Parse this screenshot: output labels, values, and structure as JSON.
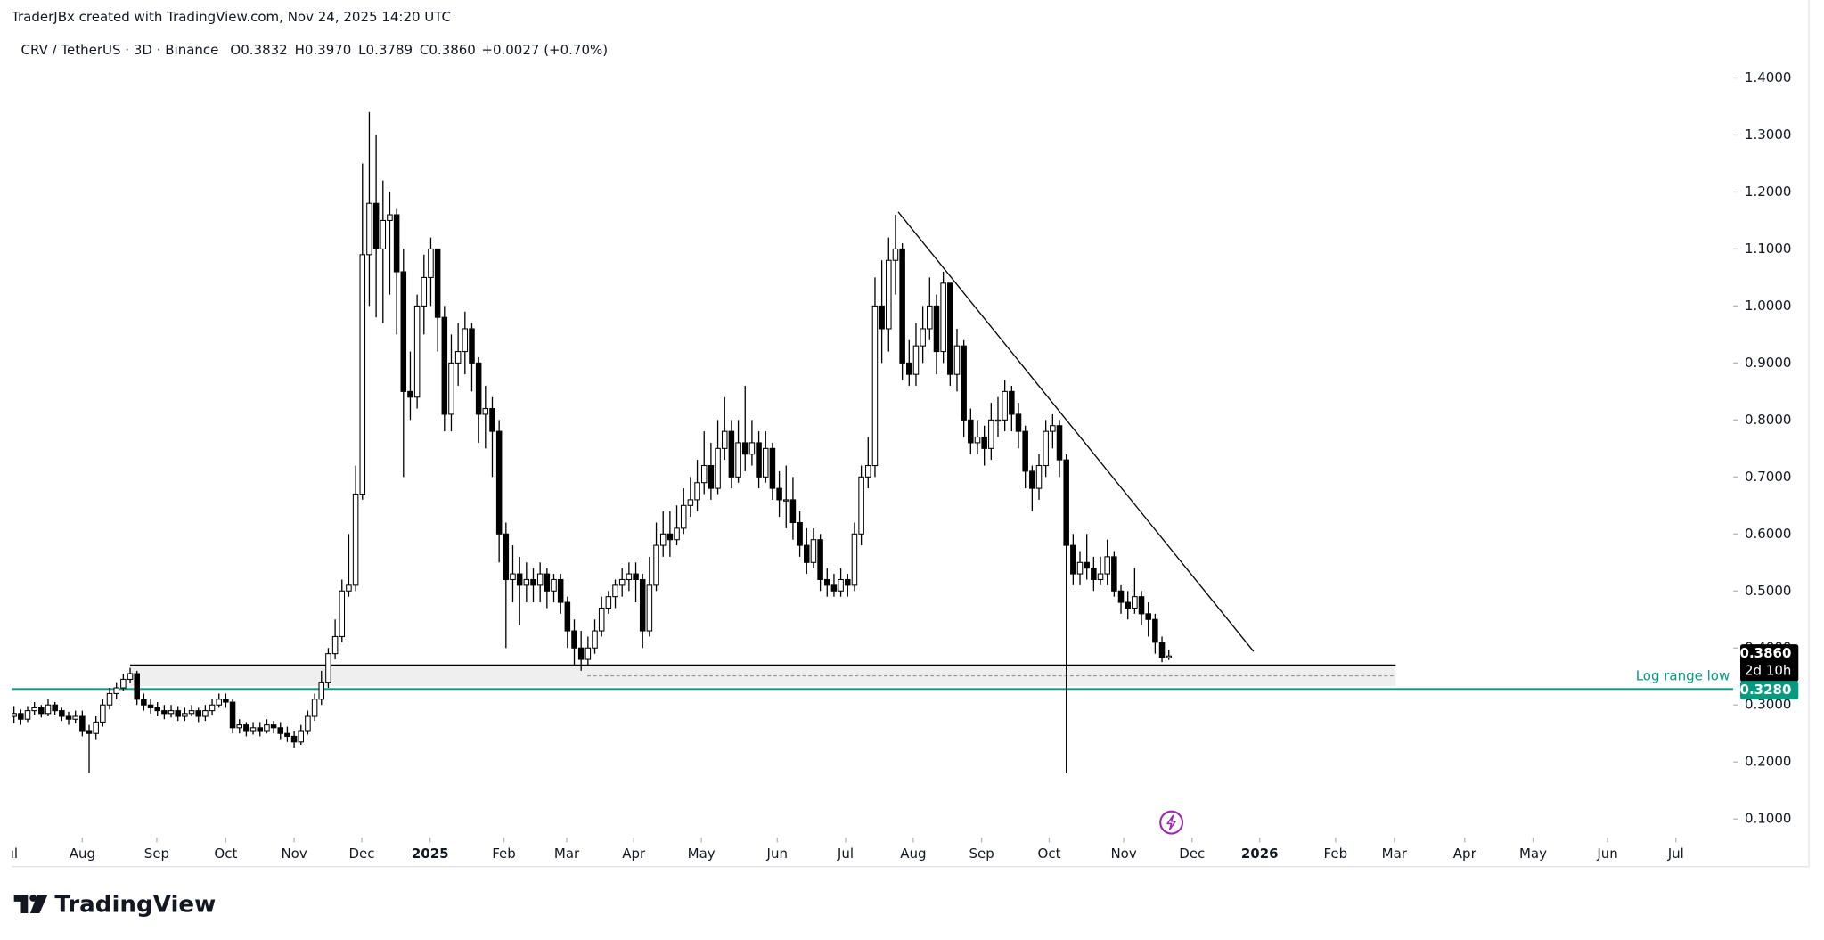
{
  "attribution": "TraderJBx created with TradingView.com, Nov 24, 2025 14:20 UTC",
  "footer": "TradingView",
  "chart_data": {
    "type": "candlestick",
    "header": {
      "symbol": "CRV / TetherUS · 3D · Binance",
      "fields": [
        {
          "key": "O",
          "value": "0.3832"
        },
        {
          "key": "H",
          "value": "0.3970"
        },
        {
          "key": "L",
          "value": "0.3789"
        },
        {
          "key": "C",
          "value": "0.3860"
        }
      ],
      "change": "+0.0027 (+0.70%)"
    },
    "up_color": "#ffffff",
    "down_color": "#000000",
    "wick_color": "#000000",
    "open": [
      0.28,
      0.285,
      0.275,
      0.29,
      0.295,
      0.285,
      0.3,
      0.29,
      0.28,
      0.275,
      0.28,
      0.255,
      0.25,
      0.27,
      0.3,
      0.32,
      0.33,
      0.345,
      0.355,
      0.31,
      0.3,
      0.295,
      0.29,
      0.285,
      0.29,
      0.28,
      0.285,
      0.29,
      0.28,
      0.29,
      0.3,
      0.31,
      0.305,
      0.26,
      0.265,
      0.255,
      0.26,
      0.255,
      0.265,
      0.26,
      0.25,
      0.245,
      0.235,
      0.255,
      0.28,
      0.31,
      0.34,
      0.39,
      0.42,
      0.5,
      0.51,
      0.67,
      1.09,
      1.18,
      1.1,
      1.15,
      1.16,
      1.06,
      0.85,
      0.84,
      1.0,
      1.05,
      1.1,
      0.98,
      0.81,
      0.9,
      0.92,
      0.96,
      0.9,
      0.81,
      0.82,
      0.78,
      0.6,
      0.52,
      0.53,
      0.51,
      0.52,
      0.51,
      0.53,
      0.5,
      0.52,
      0.48,
      0.43,
      0.4,
      0.38,
      0.4,
      0.43,
      0.47,
      0.49,
      0.51,
      0.52,
      0.53,
      0.52,
      0.43,
      0.51,
      0.58,
      0.6,
      0.59,
      0.61,
      0.65,
      0.66,
      0.69,
      0.72,
      0.68,
      0.75,
      0.78,
      0.7,
      0.76,
      0.74,
      0.76,
      0.7,
      0.75,
      0.68,
      0.66,
      0.66,
      0.62,
      0.58,
      0.55,
      0.59,
      0.52,
      0.51,
      0.5,
      0.52,
      0.51,
      0.6,
      0.7,
      0.72,
      1.0,
      0.96,
      1.08,
      1.1,
      0.9,
      0.88,
      0.93,
      0.96,
      1.0,
      0.92,
      1.04,
      0.88,
      0.93,
      0.8,
      0.76,
      0.77,
      0.75,
      0.8,
      0.8,
      0.85,
      0.81,
      0.78,
      0.71,
      0.68,
      0.72,
      0.78,
      0.79,
      0.73,
      0.58,
      0.53,
      0.55,
      0.54,
      0.52,
      0.53,
      0.56,
      0.5,
      0.48,
      0.47,
      0.49,
      0.46,
      0.45,
      0.41,
      0.3832
    ],
    "high": [
      0.298,
      0.292,
      0.298,
      0.305,
      0.3,
      0.31,
      0.305,
      0.295,
      0.288,
      0.29,
      0.29,
      0.265,
      0.28,
      0.31,
      0.33,
      0.34,
      0.355,
      0.365,
      0.36,
      0.32,
      0.31,
      0.305,
      0.3,
      0.3,
      0.298,
      0.295,
      0.3,
      0.295,
      0.3,
      0.31,
      0.32,
      0.32,
      0.31,
      0.275,
      0.27,
      0.27,
      0.27,
      0.275,
      0.272,
      0.27,
      0.262,
      0.255,
      0.265,
      0.29,
      0.32,
      0.36,
      0.4,
      0.45,
      0.52,
      0.6,
      0.72,
      1.25,
      1.34,
      1.3,
      1.22,
      1.2,
      1.17,
      1.1,
      0.92,
      1.02,
      1.09,
      1.12,
      1.1,
      1.0,
      0.95,
      0.97,
      0.99,
      0.97,
      0.91,
      0.86,
      0.84,
      0.8,
      0.62,
      0.58,
      0.56,
      0.55,
      0.54,
      0.55,
      0.54,
      0.53,
      0.53,
      0.49,
      0.45,
      0.43,
      0.42,
      0.45,
      0.49,
      0.5,
      0.52,
      0.54,
      0.55,
      0.55,
      0.53,
      0.56,
      0.62,
      0.64,
      0.64,
      0.65,
      0.68,
      0.7,
      0.73,
      0.78,
      0.76,
      0.8,
      0.84,
      0.8,
      0.8,
      0.86,
      0.8,
      0.78,
      0.78,
      0.76,
      0.71,
      0.72,
      0.7,
      0.64,
      0.61,
      0.61,
      0.6,
      0.54,
      0.53,
      0.54,
      0.53,
      0.62,
      0.72,
      0.77,
      1.05,
      1.08,
      1.12,
      1.16,
      1.11,
      0.94,
      0.97,
      1.0,
      1.05,
      1.02,
      1.06,
      1.04,
      0.96,
      0.94,
      0.82,
      0.8,
      0.79,
      0.83,
      0.84,
      0.87,
      0.86,
      0.83,
      0.79,
      0.72,
      0.74,
      0.8,
      0.81,
      0.8,
      0.74,
      0.6,
      0.57,
      0.6,
      0.56,
      0.56,
      0.59,
      0.57,
      0.51,
      0.5,
      0.54,
      0.5,
      0.48,
      0.46,
      0.42,
      0.397
    ],
    "low": [
      0.268,
      0.265,
      0.27,
      0.283,
      0.278,
      0.28,
      0.283,
      0.272,
      0.265,
      0.268,
      0.245,
      0.18,
      0.24,
      0.262,
      0.292,
      0.31,
      0.325,
      0.338,
      0.3,
      0.29,
      0.285,
      0.28,
      0.275,
      0.278,
      0.272,
      0.272,
      0.28,
      0.27,
      0.272,
      0.282,
      0.295,
      0.295,
      0.25,
      0.25,
      0.245,
      0.248,
      0.245,
      0.25,
      0.25,
      0.24,
      0.235,
      0.225,
      0.23,
      0.248,
      0.272,
      0.3,
      0.33,
      0.38,
      0.41,
      0.49,
      0.5,
      0.66,
      1.0,
      0.98,
      0.97,
      1.02,
      0.95,
      0.7,
      0.8,
      0.82,
      0.95,
      1.0,
      0.92,
      0.78,
      0.78,
      0.86,
      0.88,
      0.85,
      0.76,
      0.75,
      0.7,
      0.55,
      0.4,
      0.48,
      0.44,
      0.48,
      0.48,
      0.48,
      0.47,
      0.48,
      0.46,
      0.4,
      0.37,
      0.36,
      0.37,
      0.39,
      0.42,
      0.46,
      0.47,
      0.49,
      0.5,
      0.48,
      0.4,
      0.42,
      0.5,
      0.56,
      0.56,
      0.58,
      0.6,
      0.63,
      0.64,
      0.67,
      0.66,
      0.67,
      0.73,
      0.68,
      0.69,
      0.71,
      0.72,
      0.68,
      0.69,
      0.66,
      0.63,
      0.61,
      0.59,
      0.56,
      0.53,
      0.54,
      0.5,
      0.49,
      0.49,
      0.49,
      0.49,
      0.5,
      0.58,
      0.68,
      0.7,
      0.9,
      0.92,
      1.02,
      0.87,
      0.86,
      0.86,
      0.9,
      0.94,
      0.88,
      0.9,
      0.86,
      0.85,
      0.77,
      0.74,
      0.74,
      0.72,
      0.73,
      0.77,
      0.78,
      0.78,
      0.75,
      0.68,
      0.64,
      0.66,
      0.7,
      0.75,
      0.7,
      0.18,
      0.51,
      0.51,
      0.52,
      0.5,
      0.51,
      0.51,
      0.49,
      0.46,
      0.45,
      0.46,
      0.44,
      0.42,
      0.39,
      0.375,
      0.3789
    ],
    "close": [
      0.285,
      0.275,
      0.29,
      0.295,
      0.285,
      0.3,
      0.29,
      0.28,
      0.275,
      0.28,
      0.255,
      0.25,
      0.27,
      0.3,
      0.32,
      0.33,
      0.345,
      0.355,
      0.31,
      0.3,
      0.295,
      0.29,
      0.285,
      0.29,
      0.28,
      0.285,
      0.29,
      0.28,
      0.29,
      0.3,
      0.31,
      0.305,
      0.26,
      0.265,
      0.255,
      0.26,
      0.255,
      0.265,
      0.26,
      0.25,
      0.245,
      0.235,
      0.255,
      0.28,
      0.31,
      0.34,
      0.39,
      0.42,
      0.5,
      0.51,
      0.67,
      1.09,
      1.18,
      1.1,
      1.15,
      1.16,
      1.06,
      0.85,
      0.84,
      1.0,
      1.05,
      1.1,
      0.98,
      0.81,
      0.9,
      0.92,
      0.96,
      0.9,
      0.81,
      0.82,
      0.78,
      0.6,
      0.52,
      0.53,
      0.51,
      0.52,
      0.51,
      0.53,
      0.5,
      0.52,
      0.48,
      0.43,
      0.4,
      0.38,
      0.4,
      0.43,
      0.47,
      0.49,
      0.51,
      0.52,
      0.53,
      0.52,
      0.43,
      0.51,
      0.58,
      0.6,
      0.59,
      0.61,
      0.65,
      0.66,
      0.69,
      0.72,
      0.68,
      0.75,
      0.78,
      0.7,
      0.76,
      0.74,
      0.76,
      0.7,
      0.75,
      0.68,
      0.66,
      0.66,
      0.62,
      0.58,
      0.55,
      0.59,
      0.52,
      0.51,
      0.5,
      0.52,
      0.51,
      0.6,
      0.7,
      0.72,
      1.0,
      0.96,
      1.08,
      1.1,
      0.9,
      0.88,
      0.93,
      0.96,
      1.0,
      0.92,
      1.04,
      0.88,
      0.93,
      0.8,
      0.76,
      0.77,
      0.75,
      0.8,
      0.8,
      0.85,
      0.81,
      0.78,
      0.71,
      0.68,
      0.72,
      0.78,
      0.79,
      0.73,
      0.58,
      0.53,
      0.55,
      0.54,
      0.52,
      0.53,
      0.56,
      0.5,
      0.48,
      0.47,
      0.49,
      0.46,
      0.45,
      0.41,
      0.3833,
      0.386
    ],
    "ylim": [
      0.0673,
      1.4245
    ],
    "yticks": [
      {
        "value": 0.1,
        "label": "0.1000"
      },
      {
        "value": 0.2,
        "label": "0.2000"
      },
      {
        "value": 0.3,
        "label": "0.3000"
      },
      {
        "value": 0.4,
        "label": "0.4000"
      },
      {
        "value": 0.5,
        "label": "0.5000"
      },
      {
        "value": 0.6,
        "label": "0.6000"
      },
      {
        "value": 0.7,
        "label": "0.7000"
      },
      {
        "value": 0.8,
        "label": "0.8000"
      },
      {
        "value": 0.9,
        "label": "0.9000"
      },
      {
        "value": 1.0,
        "label": "1.0000"
      },
      {
        "value": 1.1,
        "label": "1.1000"
      },
      {
        "value": 1.2,
        "label": "1.2000"
      },
      {
        "value": 1.3,
        "label": "1.3000"
      },
      {
        "value": 1.4,
        "label": "1.4000"
      }
    ],
    "xlim": [
      -0.34,
      251.6
    ],
    "xticks": [
      {
        "value": -0.6,
        "label": "Jul"
      },
      {
        "value": 10.0,
        "label": "Aug"
      },
      {
        "value": 20.9,
        "label": "Sep"
      },
      {
        "value": 31.0,
        "label": "Oct"
      },
      {
        "value": 41.0,
        "label": "Nov"
      },
      {
        "value": 50.9,
        "label": "Dec"
      },
      {
        "value": 60.9,
        "label": "2025",
        "bold": true
      },
      {
        "value": 71.7,
        "label": "Feb"
      },
      {
        "value": 80.9,
        "label": "Mar"
      },
      {
        "value": 90.7,
        "label": "Apr"
      },
      {
        "value": 100.6,
        "label": "May"
      },
      {
        "value": 111.7,
        "label": "Jun"
      },
      {
        "value": 121.7,
        "label": "Jul"
      },
      {
        "value": 131.6,
        "label": "Aug"
      },
      {
        "value": 141.6,
        "label": "Sep"
      },
      {
        "value": 151.5,
        "label": "Oct"
      },
      {
        "value": 162.4,
        "label": "Nov"
      },
      {
        "value": 172.4,
        "label": "Dec"
      },
      {
        "value": 182.3,
        "label": "2026",
        "bold": true
      },
      {
        "value": 193.4,
        "label": "Feb"
      },
      {
        "value": 202.0,
        "label": "Mar"
      },
      {
        "value": 212.3,
        "label": "Apr"
      },
      {
        "value": 222.3,
        "label": "May"
      },
      {
        "value": 233.2,
        "label": "Jun"
      },
      {
        "value": 243.2,
        "label": "Jul"
      }
    ],
    "price_label": {
      "label": "0.3860",
      "countdown": "2d 10h"
    },
    "annotations": {
      "zone": {
        "top": 0.3695,
        "bottom": 0.333,
        "x": [
          17.0,
          202.2
        ]
      },
      "dashed_level": {
        "value": 0.351,
        "x": [
          83.9,
          202.2
        ]
      },
      "log_range_low": {
        "value": 0.328,
        "label": "Log range low",
        "price_label": "0.3280",
        "color": "#089981"
      },
      "trendline": {
        "x": [
          129.4,
          181.4
        ],
        "y": [
          1.165,
          0.394
        ]
      }
    }
  }
}
